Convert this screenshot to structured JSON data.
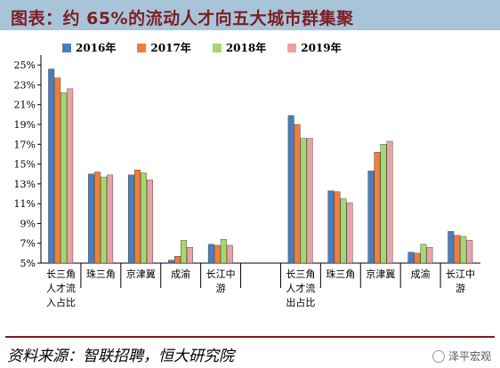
{
  "title": "图表：约 65%的流动人才向五大城市群集聚",
  "source": "资料来源：智联招聘，恒大研究院",
  "watermark": "泽平宏观",
  "colors": {
    "s2016": "#4a7ebb",
    "s2017": "#f07d3a",
    "s2018": "#a6d86e",
    "s2019": "#e9a3a5",
    "title_bar": "#a8c4d8",
    "title_text": "#7a1f25"
  },
  "chart_data": {
    "type": "bar",
    "ylim": [
      5,
      26
    ],
    "yticks": [
      "5%",
      "7%",
      "9%",
      "11%",
      "13%",
      "15%",
      "17%",
      "19%",
      "21%",
      "23%",
      "25%"
    ],
    "grid": false,
    "legend_position": "top",
    "groups": [
      {
        "name": "inflow",
        "categories": [
          "长三角人才流入占比",
          "珠三角",
          "京津冀",
          "成渝",
          "长江中游"
        ],
        "series": [
          {
            "name": "2016年",
            "values": [
              24.6,
              14.0,
              13.9,
              5.3,
              6.9
            ]
          },
          {
            "name": "2017年",
            "values": [
              23.7,
              14.2,
              14.4,
              5.7,
              6.8
            ]
          },
          {
            "name": "2018年",
            "values": [
              22.2,
              13.7,
              14.1,
              7.3,
              7.4
            ]
          },
          {
            "name": "2019年",
            "values": [
              22.6,
              13.9,
              13.4,
              6.6,
              6.8
            ]
          }
        ]
      },
      {
        "name": "outflow",
        "categories": [
          "长三角人才流出占比",
          "珠三角",
          "京津冀",
          "成渝",
          "长江中游"
        ],
        "series": [
          {
            "name": "2016年",
            "values": [
              19.9,
              12.3,
              14.3,
              6.1,
              8.2
            ]
          },
          {
            "name": "2017年",
            "values": [
              19.0,
              12.2,
              16.2,
              6.0,
              7.8
            ]
          },
          {
            "name": "2018年",
            "values": [
              17.6,
              11.5,
              17.0,
              6.9,
              7.7
            ]
          },
          {
            "name": "2019年",
            "values": [
              17.6,
              11.1,
              17.3,
              6.6,
              7.3
            ]
          }
        ]
      }
    ],
    "category_label_lines": [
      [
        "长三角",
        "人才流",
        "入占比"
      ],
      [
        "珠三角"
      ],
      [
        "京津冀"
      ],
      [
        "成渝"
      ],
      [
        "长江中",
        "游"
      ],
      [
        "长三角",
        "人才流",
        "出占比"
      ],
      [
        "珠三角"
      ],
      [
        "京津冀"
      ],
      [
        "成渝"
      ],
      [
        "长江中",
        "游"
      ]
    ]
  }
}
